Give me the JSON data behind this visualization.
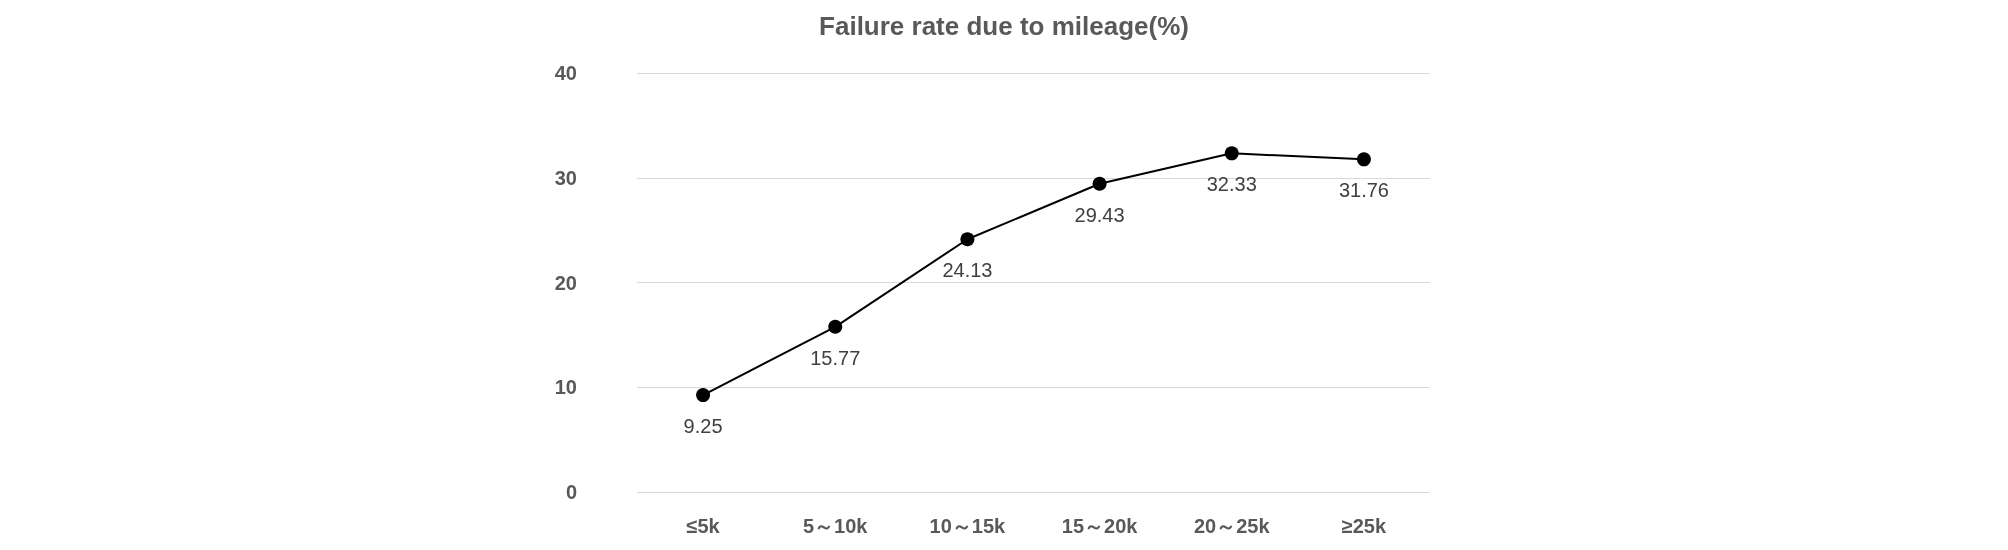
{
  "chart_data": {
    "type": "line",
    "title": "Failure rate due to mileage(%)",
    "categories": [
      "≤5k",
      "5～10k",
      "10～15k",
      "15～20k",
      "20～25k",
      "≥25k"
    ],
    "series": [
      {
        "color": "#000000",
        "values": [
          9.25,
          15.77,
          24.13,
          29.43,
          32.33,
          31.76
        ]
      }
    ],
    "ylim": [
      0,
      40
    ],
    "yticks": [
      0,
      10,
      20,
      30,
      40
    ],
    "grid": "y",
    "marker": "circle",
    "line_style": "solid",
    "data_labels": true
  }
}
